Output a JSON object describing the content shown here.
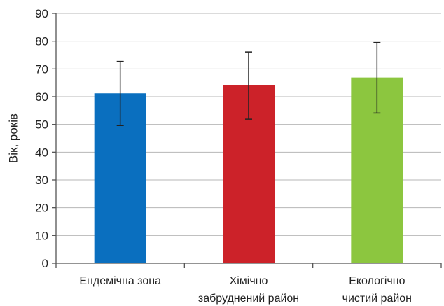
{
  "chart_data": {
    "type": "bar",
    "categories": [
      [
        "Ендемічна зона"
      ],
      [
        "Хімічно",
        "забруднений район"
      ],
      [
        "Екологічно",
        "чистий район"
      ]
    ],
    "values": [
      61.2,
      64.1,
      66.9
    ],
    "error_low": [
      49.6,
      51.9,
      54.1
    ],
    "error_high": [
      72.7,
      76.1,
      79.5
    ],
    "colors": [
      "#0a6fbf",
      "#cc2229",
      "#8cc63f"
    ],
    "ylabel": "Вік, років",
    "xlabel": "",
    "title": "",
    "ylim": [
      0,
      90
    ],
    "yticks": [
      "0",
      "10",
      "20",
      "30",
      "40",
      "50",
      "60",
      "70",
      "80",
      "90"
    ],
    "grid": true,
    "legend": "none"
  }
}
